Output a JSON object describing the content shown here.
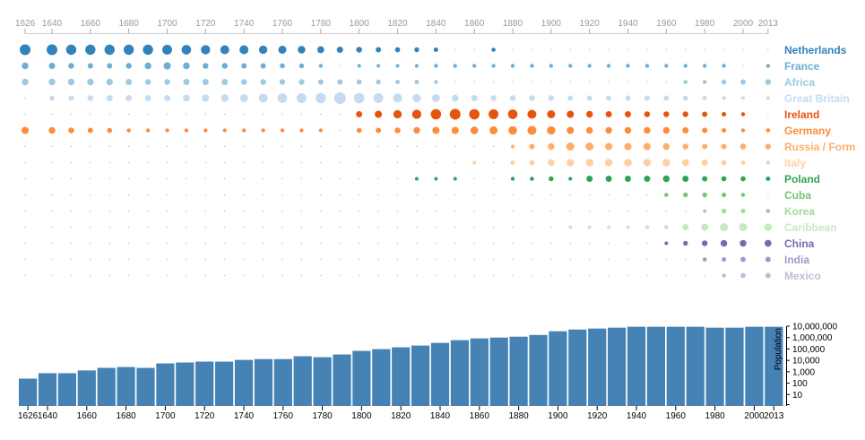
{
  "chart_data": [
    {
      "type": "scatter",
      "encoding": "bubble area proportional to value; zero shown as a tiny dot",
      "x_ticks": [
        "1626",
        "1640",
        "1660",
        "1680",
        "1700",
        "1720",
        "1740",
        "1760",
        "1780",
        "1800",
        "1820",
        "1840",
        "1860",
        "1880",
        "1900",
        "1920",
        "1940",
        "1960",
        "1980",
        "2000",
        "2013"
      ],
      "years": [
        1626,
        1640,
        1650,
        1660,
        1670,
        1680,
        1690,
        1700,
        1710,
        1720,
        1730,
        1740,
        1750,
        1760,
        1770,
        1780,
        1790,
        1800,
        1810,
        1820,
        1830,
        1840,
        1850,
        1860,
        1870,
        1880,
        1890,
        1900,
        1910,
        1920,
        1930,
        1940,
        1950,
        1960,
        1970,
        1980,
        1990,
        2000,
        2013
      ],
      "series": [
        {
          "name": "Netherlands",
          "color": "#3182bd",
          "values": [
            44,
            44,
            40,
            40,
            40,
            40,
            40,
            37,
            35,
            33,
            31,
            31,
            27,
            25,
            22,
            18,
            15,
            13,
            11,
            10,
            9,
            8,
            0,
            0,
            6.5,
            0,
            0,
            0,
            0,
            0,
            0,
            0,
            0,
            0,
            0,
            0,
            0,
            0,
            0
          ]
        },
        {
          "name": "France",
          "color": "#6baed6",
          "values": [
            17,
            15,
            13,
            11,
            11,
            12.6,
            17,
            20,
            17,
            13,
            12.6,
            11,
            11,
            10,
            9,
            6,
            0,
            5,
            5,
            5,
            5,
            6,
            6,
            6,
            6,
            6,
            6,
            6,
            6,
            6,
            6,
            6,
            6,
            6,
            6,
            6,
            6,
            0,
            6
          ]
        },
        {
          "name": "Africa",
          "color": "#9ecae1",
          "values": [
            17,
            17,
            17,
            17,
            17,
            15,
            13,
            13,
            15,
            15,
            15,
            13,
            12.6,
            12.6,
            12.6,
            11,
            11,
            10,
            9,
            8,
            8,
            6,
            0,
            0,
            0,
            0,
            0,
            0,
            0,
            0,
            0,
            0,
            0,
            0,
            6.5,
            6.5,
            9,
            11,
            13
          ]
        },
        {
          "name": "Great Britain",
          "color": "#c6dbef",
          "values": [
            0,
            10,
            11,
            13,
            15,
            15,
            15,
            15,
            18,
            20,
            22,
            25,
            31,
            35,
            37,
            41,
            52,
            41,
            37,
            31,
            27,
            25,
            18,
            15,
            13,
            12.6,
            12.6,
            12.6,
            11,
            11,
            11,
            11,
            11,
            11,
            10,
            8,
            6,
            5,
            5
          ]
        },
        {
          "name": "Ireland",
          "color": "#e6550d",
          "values": [
            0,
            0,
            0,
            0,
            0,
            0,
            0,
            0,
            0,
            0,
            0,
            0,
            0,
            0,
            0,
            0,
            0,
            15,
            20,
            27,
            33,
            41,
            44,
            41,
            37,
            35,
            31,
            25,
            20,
            17,
            15,
            15,
            13,
            13,
            12.6,
            11,
            8,
            6,
            0
          ]
        },
        {
          "name": "Germany",
          "color": "#fd8d3c",
          "values": [
            20,
            17,
            13,
            11,
            10,
            6.5,
            6,
            6,
            6,
            6,
            6,
            6,
            6,
            6,
            6,
            6,
            0,
            10,
            11,
            13,
            17,
            20,
            20,
            23,
            25,
            28,
            31,
            27,
            20,
            17,
            17,
            17,
            17,
            17,
            15,
            11,
            8,
            6,
            6.5
          ]
        },
        {
          "name": "Russia / Form",
          "color": "#fdae6b",
          "values": [
            0,
            0,
            0,
            0,
            0,
            0,
            0,
            0,
            0,
            0,
            0,
            0,
            0,
            0,
            0,
            0,
            0,
            0,
            0,
            0,
            0,
            0,
            0,
            0,
            0,
            5,
            11,
            17,
            25,
            25,
            20,
            20,
            20,
            17,
            13,
            11,
            11,
            13,
            12.6
          ]
        },
        {
          "name": "Italy",
          "color": "#fdd0a2",
          "values": [
            0,
            0,
            0,
            0,
            0,
            0,
            0,
            0,
            0,
            0,
            0,
            0,
            0,
            0,
            0,
            0,
            0,
            0,
            0,
            0,
            0,
            0,
            0,
            5,
            0,
            8,
            11,
            17,
            20,
            22,
            22,
            22,
            22,
            22,
            18,
            15,
            11,
            6.5,
            6.5
          ]
        },
        {
          "name": "Poland",
          "color": "#31a354",
          "values": [
            0,
            0,
            0,
            0,
            0,
            0,
            0,
            0,
            0,
            0,
            0,
            0,
            0,
            0,
            0,
            0,
            0,
            0,
            0,
            0,
            5,
            5,
            5,
            0,
            0,
            6,
            6.5,
            9,
            5,
            15,
            15,
            15,
            15,
            17,
            15,
            11,
            10,
            10,
            8
          ]
        },
        {
          "name": "Cuba",
          "color": "#74c476",
          "values": [
            0,
            0,
            0,
            0,
            0,
            0,
            0,
            0,
            0,
            0,
            0,
            0,
            0,
            0,
            0,
            0,
            0,
            0,
            0,
            0,
            0,
            0,
            0,
            0,
            0,
            0,
            0,
            0,
            0,
            0,
            0,
            0,
            0,
            6.5,
            9,
            9,
            8,
            6,
            0
          ]
        },
        {
          "name": "Korea",
          "color": "#a1d99b",
          "values": [
            0,
            0,
            0,
            0,
            0,
            0,
            0,
            0,
            0,
            0,
            0,
            0,
            0,
            0,
            0,
            0,
            0,
            0,
            0,
            0,
            0,
            0,
            0,
            0,
            0,
            0,
            0,
            0,
            0,
            0,
            0,
            0,
            0,
            0,
            0,
            5,
            9,
            8,
            8
          ]
        },
        {
          "name": "Caribbean",
          "color": "#c7e9c0",
          "values": [
            0,
            0,
            0,
            0,
            0,
            0,
            0,
            0,
            0,
            0,
            0,
            0,
            0,
            0,
            0,
            0,
            0,
            0,
            0,
            0,
            0,
            0,
            0,
            0,
            0,
            0,
            0,
            0,
            5,
            5,
            5,
            5,
            6.5,
            8,
            15,
            20,
            25,
            25,
            22
          ]
        },
        {
          "name": "China",
          "color": "#756bb1",
          "values": [
            0,
            0,
            0,
            0,
            0,
            0,
            0,
            0,
            0,
            0,
            0,
            0,
            0,
            0,
            0,
            0,
            0,
            0,
            0,
            0,
            0,
            0,
            0,
            0,
            0,
            0,
            0,
            0,
            0,
            0,
            0,
            0,
            0,
            5,
            9,
            12.6,
            17,
            17,
            18
          ]
        },
        {
          "name": "India",
          "color": "#9e9ac8",
          "values": [
            0,
            0,
            0,
            0,
            0,
            0,
            0,
            0,
            0,
            0,
            0,
            0,
            0,
            0,
            0,
            0,
            0,
            0,
            0,
            0,
            0,
            0,
            0,
            0,
            0,
            0,
            0,
            0,
            0,
            0,
            0,
            0,
            0,
            0,
            0,
            6.5,
            8,
            10,
            11
          ]
        },
        {
          "name": "Mexico",
          "color": "#bcbddc",
          "values": [
            0,
            0,
            0,
            0,
            0,
            0,
            0,
            0,
            0,
            0,
            0,
            0,
            0,
            0,
            0,
            0,
            0,
            0,
            0,
            0,
            0,
            0,
            0,
            0,
            0,
            0,
            0,
            0,
            0,
            0,
            0,
            0,
            0,
            0,
            0,
            0,
            6.5,
            10,
            11
          ]
        }
      ]
    },
    {
      "type": "bar",
      "ylabel": "Population",
      "yscale": "log",
      "ylim": [
        1,
        10000000
      ],
      "y_ticks": [
        "10",
        "100",
        "1,000",
        "10,000",
        "100,000",
        "1,000,000",
        "10,000,000"
      ],
      "y_tick_values": [
        10,
        100,
        1000,
        10000,
        100000,
        1000000,
        10000000
      ],
      "x_ticks": [
        "1626",
        "1640",
        "1660",
        "1680",
        "1700",
        "1720",
        "1740",
        "1760",
        "1780",
        "1800",
        "1820",
        "1840",
        "1860",
        "1880",
        "1900",
        "1920",
        "1940",
        "1960",
        "1980",
        "2000",
        "2013"
      ],
      "color": "#4682b4",
      "categories": [
        1626,
        1640,
        1650,
        1660,
        1670,
        1680,
        1690,
        1700,
        1710,
        1720,
        1730,
        1740,
        1750,
        1760,
        1770,
        1780,
        1790,
        1800,
        1810,
        1820,
        1830,
        1840,
        1850,
        1860,
        1870,
        1880,
        1890,
        1900,
        1910,
        1920,
        1930,
        1940,
        1950,
        1960,
        1970,
        1980,
        1990,
        2000,
        2013
      ],
      "values": [
        250,
        750,
        750,
        1300,
        2200,
        2600,
        2200,
        5400,
        6500,
        7800,
        7800,
        11000,
        13000,
        13000,
        23000,
        19000,
        33000,
        68000,
        97000,
        140000,
        200000,
        340000,
        590000,
        850000,
        1000000,
        1200000,
        1700000,
        3600000,
        5100000,
        6200000,
        7400000,
        8900000,
        8900000,
        8900000,
        8900000,
        7400000,
        7400000,
        8900000,
        8900000
      ]
    }
  ]
}
